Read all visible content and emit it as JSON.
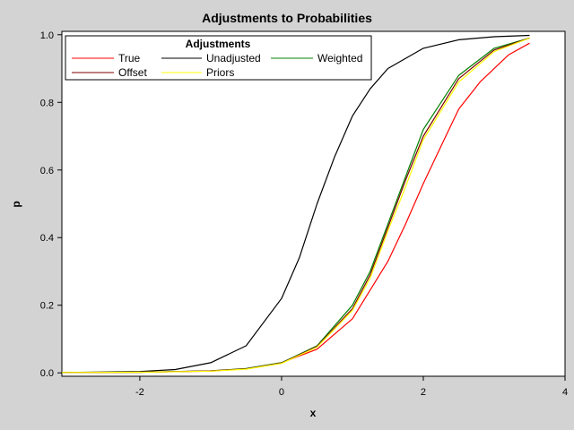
{
  "chart_data": {
    "type": "line",
    "title": "Adjustments to Probabilities",
    "xlabel": "x",
    "ylabel": "p",
    "xlim": [
      -3.1,
      4.0
    ],
    "ylim": [
      -0.01,
      1.01
    ],
    "xticks": [
      -2,
      0,
      2,
      4
    ],
    "yticks": [
      0.0,
      0.2,
      0.4,
      0.6,
      0.8,
      1.0
    ],
    "ytick_labels": [
      "0.0",
      "0.2",
      "0.4",
      "0.6",
      "0.8",
      "1.0"
    ],
    "grid": false,
    "legend": {
      "title": "Adjustments",
      "placement": "top-left"
    },
    "series": [
      {
        "name": "True",
        "color": "#ff0000",
        "x": [
          -3.1,
          -2.0,
          -1.0,
          -0.5,
          0.0,
          0.5,
          1.0,
          1.5,
          1.75,
          2.0,
          2.25,
          2.5,
          2.8,
          3.2,
          3.5
        ],
        "y": [
          0.001,
          0.002,
          0.005,
          0.012,
          0.03,
          0.07,
          0.16,
          0.33,
          0.44,
          0.56,
          0.67,
          0.78,
          0.86,
          0.94,
          0.975
        ]
      },
      {
        "name": "Unadjusted",
        "color": "#000000",
        "x": [
          -3.1,
          -2.0,
          -1.5,
          -1.0,
          -0.5,
          0.0,
          0.25,
          0.5,
          0.75,
          1.0,
          1.25,
          1.5,
          2.0,
          2.5,
          3.0,
          3.5
        ],
        "y": [
          0.001,
          0.004,
          0.01,
          0.03,
          0.08,
          0.22,
          0.34,
          0.5,
          0.64,
          0.76,
          0.84,
          0.9,
          0.96,
          0.985,
          0.994,
          0.998
        ]
      },
      {
        "name": "Weighted",
        "color": "#008000",
        "x": [
          -3.1,
          -2.0,
          -1.0,
          -0.5,
          0.0,
          0.5,
          1.0,
          1.25,
          1.5,
          1.75,
          2.0,
          2.5,
          3.0,
          3.5
        ],
        "y": [
          0.001,
          0.002,
          0.006,
          0.013,
          0.03,
          0.08,
          0.2,
          0.3,
          0.44,
          0.58,
          0.72,
          0.88,
          0.96,
          0.99
        ]
      },
      {
        "name": "Offset",
        "color": "#800000",
        "x": [
          -3.1,
          -2.0,
          -1.0,
          -0.5,
          0.0,
          0.5,
          1.0,
          1.25,
          1.5,
          1.75,
          2.0,
          2.5,
          3.0,
          3.5
        ],
        "y": [
          0.001,
          0.002,
          0.006,
          0.012,
          0.029,
          0.078,
          0.19,
          0.29,
          0.43,
          0.57,
          0.7,
          0.87,
          0.955,
          0.99
        ]
      },
      {
        "name": "Priors",
        "color": "#ffff00",
        "x": [
          -3.1,
          -2.0,
          -1.0,
          -0.5,
          0.0,
          0.5,
          1.0,
          1.25,
          1.5,
          1.75,
          2.0,
          2.5,
          3.0,
          3.5
        ],
        "y": [
          0.001,
          0.002,
          0.005,
          0.011,
          0.028,
          0.076,
          0.185,
          0.28,
          0.42,
          0.55,
          0.69,
          0.86,
          0.95,
          0.99
        ]
      }
    ]
  }
}
